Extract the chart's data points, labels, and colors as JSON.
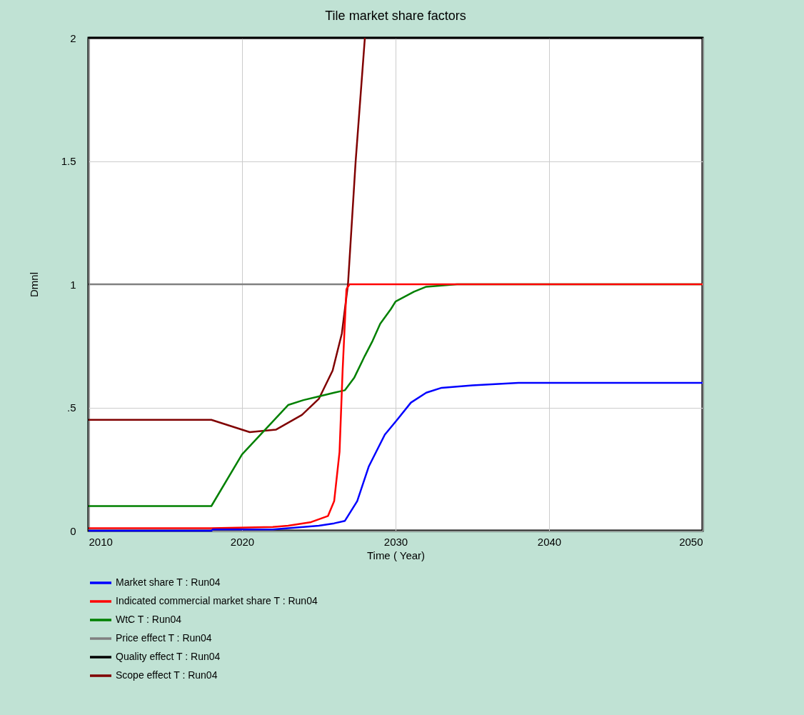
{
  "chart_data": {
    "type": "line",
    "title": "Tile market share factors",
    "xlabel": "Time (  Year)",
    "ylabel": "Dmnl",
    "xlim": [
      2010,
      2050
    ],
    "xticks": [
      2010,
      2020,
      2030,
      2040,
      2050
    ],
    "ylim": [
      0,
      2
    ],
    "yticks": [
      0,
      {
        "value": 0.5,
        "label": ".5"
      },
      1,
      1.5,
      2
    ],
    "grid": true,
    "legend": "bottom",
    "marker": "none",
    "line_style": "solid",
    "series": [
      {
        "name": "Market share T : Run04",
        "color": "#0000ff",
        "x": [
          2010,
          2018,
          2018.1,
          2022,
          2023,
          2025,
          2026,
          2026.7,
          2027.5,
          2028.25,
          2029.3,
          2030.1,
          2031,
          2032,
          2033,
          2035,
          2038,
          2050
        ],
        "values": [
          0,
          0,
          0.005,
          0.005,
          0.01,
          0.02,
          0.03,
          0.04,
          0.12,
          0.26,
          0.39,
          0.45,
          0.52,
          0.56,
          0.58,
          0.59,
          0.6,
          0.6
        ]
      },
      {
        "name": "Indicated commercial market share T : Run04",
        "color": "#ff0000",
        "x": [
          2010,
          2018,
          2022,
          2023,
          2024.5,
          2025.6,
          2026,
          2026.35,
          2026.55,
          2026.8,
          2027,
          2050
        ],
        "values": [
          0.01,
          0.01,
          0.015,
          0.02,
          0.035,
          0.06,
          0.12,
          0.32,
          0.65,
          0.98,
          1,
          1
        ]
      },
      {
        "name": "WtC T : Run04",
        "color": "#008000",
        "x": [
          2010,
          2018,
          2020,
          2021.5,
          2023,
          2024,
          2025,
          2026,
          2026.7,
          2027.3,
          2028,
          2028.5,
          2029,
          2029.7,
          2030,
          2031.2,
          2032,
          2034,
          2050
        ],
        "values": [
          0.1,
          0.1,
          0.31,
          0.41,
          0.51,
          0.53,
          0.545,
          0.56,
          0.57,
          0.62,
          0.71,
          0.77,
          0.84,
          0.9,
          0.93,
          0.97,
          0.99,
          1,
          1
        ]
      },
      {
        "name": "Price effect T : Run04",
        "color": "#808080",
        "x": [
          2010,
          2026.9
        ],
        "values": [
          1,
          1
        ]
      },
      {
        "name": "Quality effect T : Run04",
        "color": "#000000",
        "x": [
          2010,
          2050
        ],
        "values": [
          2,
          2
        ]
      },
      {
        "name": "Scope effect T : Run04",
        "color": "#800000",
        "x": [
          2010,
          2018,
          2020.5,
          2022.2,
          2023.9,
          2025,
          2025.9,
          2026.5,
          2026.9,
          2027.4,
          2028
        ],
        "values": [
          0.45,
          0.45,
          0.4,
          0.41,
          0.47,
          0.535,
          0.65,
          0.8,
          1,
          1.5,
          2
        ]
      }
    ]
  }
}
